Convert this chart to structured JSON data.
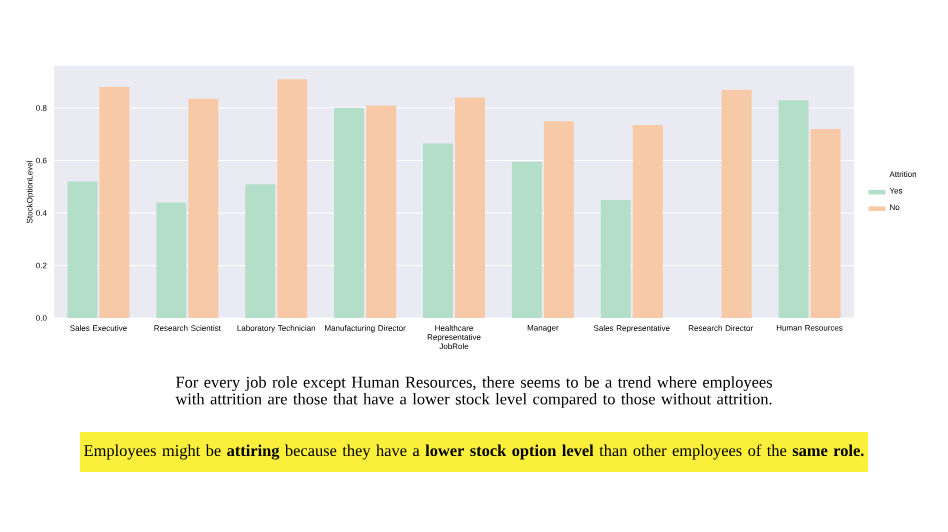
{
  "chart_data": {
    "type": "bar",
    "categories": [
      "Sales Executive",
      "Research Scientist",
      "Laboratory Technician",
      "Manufacturing Director",
      "Healthcare Representative",
      "Manager",
      "Sales Representative",
      "Research Director",
      "Human Resources"
    ],
    "series": [
      {
        "name": "Yes",
        "color": "#b3dfc9",
        "values": [
          0.52,
          0.44,
          0.51,
          0.8,
          0.665,
          0.595,
          0.45,
          null,
          0.83
        ]
      },
      {
        "name": "No",
        "color": "#f8c9a6",
        "values": [
          0.88,
          0.835,
          0.91,
          0.81,
          0.84,
          0.75,
          0.735,
          0.87,
          0.72
        ]
      }
    ],
    "xlabel": "JobRole",
    "ylabel": "StockOptionLevel",
    "legend_title": "Attrition",
    "legend": "right",
    "grid": "y",
    "ylim": [
      0,
      0.96
    ],
    "yticks": [
      {
        "value": 0,
        "label": "0.0"
      },
      {
        "value": 0.2,
        "label": "0.2"
      },
      {
        "value": 0.4,
        "label": "0.4"
      },
      {
        "value": 0.6,
        "label": "0.6"
      },
      {
        "value": 0.8,
        "label": "0.8"
      }
    ],
    "annotations": [
      "For every job role except Human Resources, there seems to be a trend where employees with attrition are those that have a lower stock level compared to those without attrition.",
      "Employees might be **attiring** because they have a **lower stock option level** than other employees of the **same role.**"
    ]
  }
}
